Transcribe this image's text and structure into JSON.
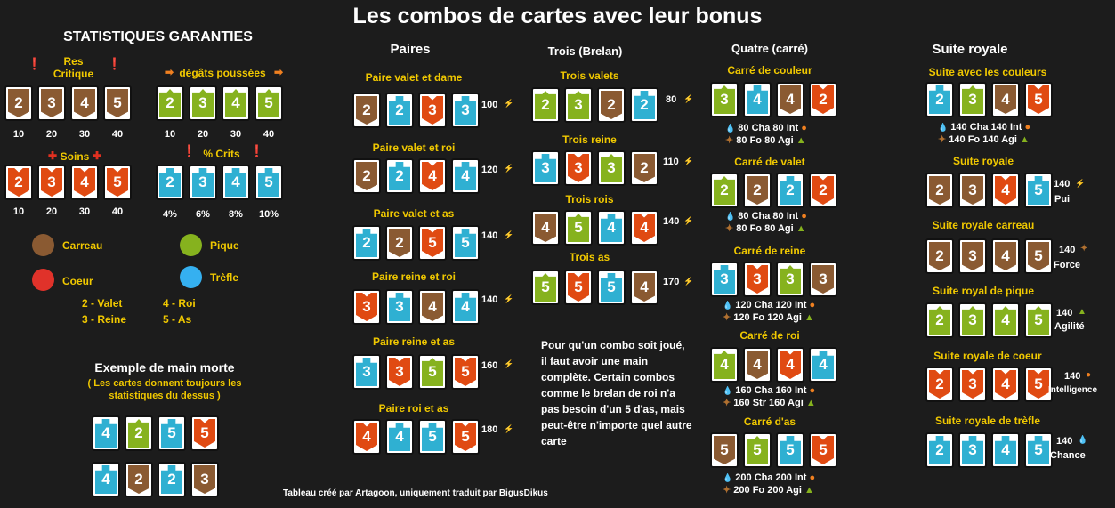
{
  "title": "Les combos de cartes avec leur bonus",
  "stats": {
    "title": "STATISTIQUES GARANTIES",
    "res_label": "Res\nCritique",
    "degats_label": "dégâts poussées",
    "soins_label": "Soins",
    "crits_label": "% Crits",
    "res_values": [
      "10",
      "20",
      "30",
      "40"
    ],
    "degats_values": [
      "10",
      "20",
      "30",
      "40"
    ],
    "soins_values": [
      "10",
      "20",
      "30",
      "40"
    ],
    "crits_values": [
      "4%",
      "6%",
      "8%",
      "10%"
    ],
    "card_numbers": [
      "2",
      "3",
      "4",
      "5"
    ]
  },
  "legend": {
    "carreau": "Carreau",
    "pique": "Pique",
    "coeur": "Coeur",
    "trefle": "Trèfle",
    "valet": "2 -  Valet",
    "reine": "3 -  Reine",
    "roi": "4 -  Roi",
    "as": "5 -  As",
    "colors": {
      "carreau": "#8a5a32",
      "pique": "#86b21e",
      "coeur": "#e0322a",
      "trefle": "#35b0f0"
    }
  },
  "dead_hand": {
    "title": "Exemple de main morte",
    "subtitle": "( Les cartes donnent toujours les statistiques du dessus )"
  },
  "columns": {
    "paires": "Paires",
    "trois": "Trois (Brelan)",
    "quatre": "Quatre (carré)",
    "suite": "Suite royale"
  },
  "paires": [
    {
      "name": "Paire valet et dame",
      "bonus": "100"
    },
    {
      "name": "Paire valet et roi",
      "bonus": "120"
    },
    {
      "name": "Paire valet et as",
      "bonus": "140"
    },
    {
      "name": "Paire reine et roi",
      "bonus": "140"
    },
    {
      "name": "Paire reine et as",
      "bonus": "160"
    },
    {
      "name": "Paire roi et as",
      "bonus": "180"
    }
  ],
  "trois": [
    {
      "name": "Trois valets",
      "bonus": "80"
    },
    {
      "name": "Trois reine",
      "bonus": "110"
    },
    {
      "name": "Trois rois",
      "bonus": "140"
    },
    {
      "name": "Trois as",
      "bonus": "170"
    }
  ],
  "note": "Pour qu'un combo soit joué, il faut avoir une main complète. Certain combos comme le brelan de roi n'a pas besoin d'un 5 d'as, mais peut-être n'importe quel autre carte",
  "quatre": [
    {
      "name": "Carré de couleur",
      "l1": "80 Cha",
      "l2": "80 Int",
      "l3": "80 Fo",
      "l4": "80 Agi"
    },
    {
      "name": "Carré de valet",
      "l1": "80 Cha",
      "l2": "80 Int",
      "l3": "80 Fo",
      "l4": "80 Agi"
    },
    {
      "name": "Carré de reine",
      "l1": "120 Cha",
      "l2": "120 Int",
      "l3": "120 Fo",
      "l4": "120 Agi"
    },
    {
      "name": "Carré de roi",
      "l1": "160 Cha",
      "l2": "160 Int",
      "l3": "160 Str",
      "l4": "160 Agi"
    },
    {
      "name": "Carré d'as",
      "l1": "200 Cha",
      "l2": "200 Int",
      "l3": "200 Fo",
      "l4": "200 Agi"
    }
  ],
  "suite": [
    {
      "name": "Suite avec les couleurs",
      "l1": "140 Cha",
      "l2": "140 Int",
      "l3": "140 Fo",
      "l4": "140 Agi"
    },
    {
      "name": "Suite royale",
      "bonus": "140",
      "stat": "Pui"
    },
    {
      "name": "Suite royale carreau",
      "bonus": "140",
      "stat": "Force"
    },
    {
      "name": "Suite royal de pique",
      "bonus": "140",
      "stat": "Agilité"
    },
    {
      "name": "Suite royale de coeur",
      "bonus": "140",
      "stat": "Intelligence"
    },
    {
      "name": "Suite royale de trèfle",
      "bonus": "140",
      "stat": "Chance"
    }
  ],
  "footer": "Tableau créé par Artagoon, uniquement traduit par BigusDikus"
}
